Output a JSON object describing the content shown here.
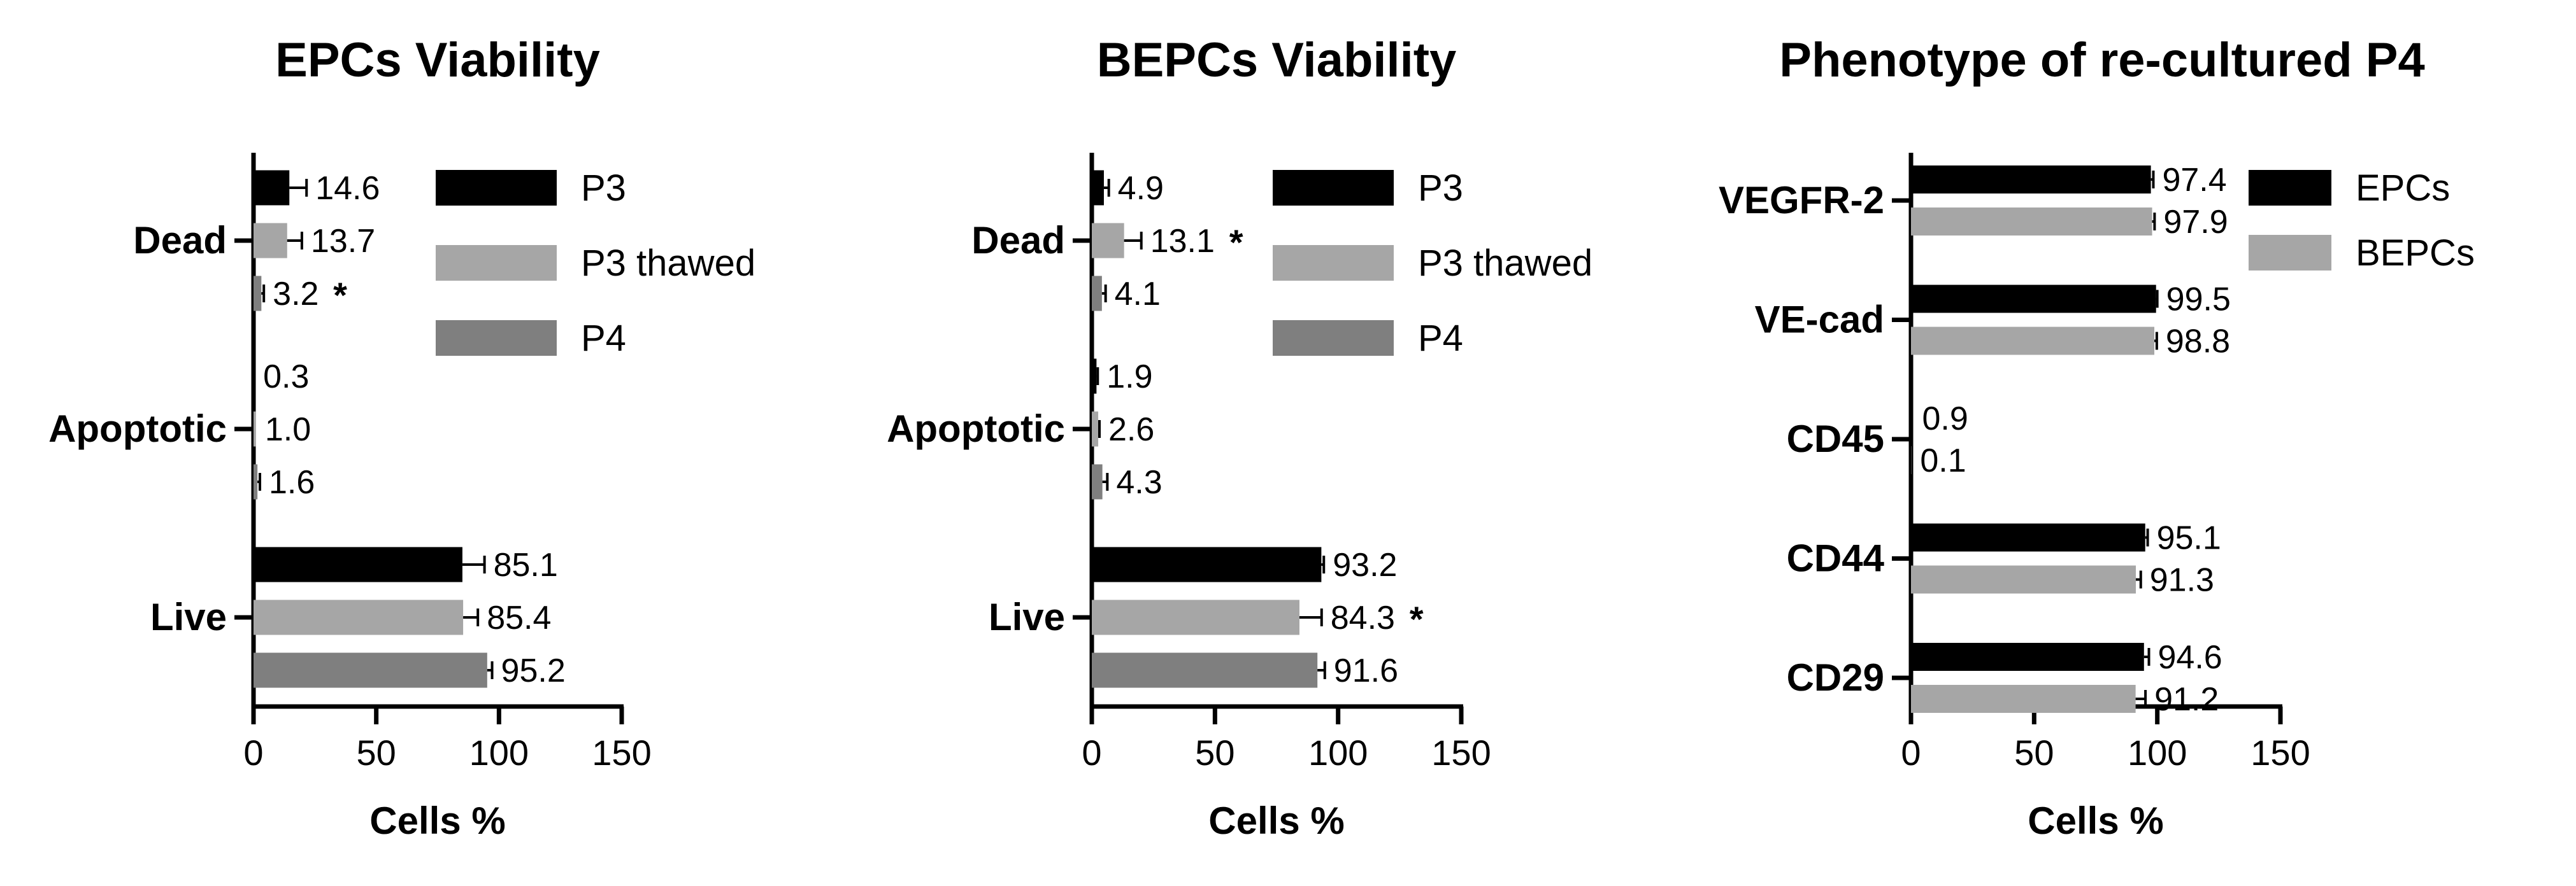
{
  "chart_data": [
    {
      "type": "bar",
      "orientation": "horizontal",
      "title": "EPCs Viability",
      "xlabel": "Cells %",
      "xlim": [
        0,
        150
      ],
      "xticks": [
        0,
        50,
        100,
        150
      ],
      "categories": [
        "Dead",
        "Apoptotic",
        "Live"
      ],
      "series": [
        {
          "name": "P3",
          "color": "#000000",
          "values": [
            14.6,
            0.3,
            85.1
          ],
          "errors": [
            7,
            0,
            9
          ],
          "labels": [
            "14.6",
            "0.3",
            "85.1"
          ],
          "sig": [
            "",
            "",
            ""
          ]
        },
        {
          "name": "P3 thawed",
          "color": "#a6a6a6",
          "values": [
            13.7,
            1.0,
            85.4
          ],
          "errors": [
            6,
            0,
            6
          ],
          "labels": [
            "13.7",
            "1.0",
            "85.4"
          ],
          "sig": [
            "",
            "",
            ""
          ]
        },
        {
          "name": "P4",
          "color": "#7f7f7f",
          "values": [
            3.2,
            1.6,
            95.2
          ],
          "errors": [
            1,
            1,
            2
          ],
          "labels": [
            "3.2",
            "1.6",
            "95.2"
          ],
          "sig": [
            "*",
            "",
            ""
          ]
        }
      ],
      "legend": [
        "P3",
        "P3 thawed",
        "P4"
      ]
    },
    {
      "type": "bar",
      "orientation": "horizontal",
      "title": "BEPCs Viability",
      "xlabel": "Cells %",
      "xlim": [
        0,
        150
      ],
      "xticks": [
        0,
        50,
        100,
        150
      ],
      "categories": [
        "Dead",
        "Apoptotic",
        "Live"
      ],
      "series": [
        {
          "name": "P3",
          "color": "#000000",
          "values": [
            4.9,
            1.9,
            93.2
          ],
          "errors": [
            2,
            0.5,
            1
          ],
          "labels": [
            "4.9",
            "1.9",
            "93.2"
          ],
          "sig": [
            "",
            "",
            ""
          ]
        },
        {
          "name": "P3 thawed",
          "color": "#a6a6a6",
          "values": [
            13.1,
            2.6,
            84.3
          ],
          "errors": [
            7,
            0.5,
            9
          ],
          "labels": [
            "13.1",
            "2.6",
            "84.3"
          ],
          "sig": [
            "*",
            "",
            "*"
          ]
        },
        {
          "name": "P4",
          "color": "#7f7f7f",
          "values": [
            4.1,
            4.3,
            91.6
          ],
          "errors": [
            1.5,
            2,
            3
          ],
          "labels": [
            "4.1",
            "4.3",
            "91.6"
          ],
          "sig": [
            "",
            "",
            ""
          ]
        }
      ],
      "legend": [
        "P3",
        "P3 thawed",
        "P4"
      ]
    },
    {
      "type": "bar",
      "orientation": "horizontal",
      "title": "Phenotype of re-cultured P4",
      "xlabel": "Cells %",
      "xlim": [
        0,
        150
      ],
      "xticks": [
        0,
        50,
        100,
        150
      ],
      "categories": [
        "VEGFR-2",
        "VE-cad",
        "CD45",
        "CD44",
        "CD29"
      ],
      "series": [
        {
          "name": "EPCs",
          "color": "#000000",
          "values": [
            97.4,
            99.5,
            0.9,
            95.1,
            94.6
          ],
          "errors": [
            1,
            0.5,
            0,
            1,
            2
          ],
          "labels": [
            "97.4",
            "99.5",
            "0.9",
            "95.1",
            "94.6"
          ],
          "sig": [
            "",
            "",
            "",
            "",
            ""
          ]
        },
        {
          "name": "BEPCs",
          "color": "#a6a6a6",
          "values": [
            97.9,
            98.8,
            0.1,
            91.3,
            91.2
          ],
          "errors": [
            1,
            1,
            0,
            2,
            4
          ],
          "labels": [
            "97.9",
            "98.8",
            "0.1",
            "91.3",
            "91.2"
          ],
          "sig": [
            "",
            "",
            "",
            "",
            ""
          ]
        }
      ],
      "legend": [
        "EPCs",
        "BEPCs"
      ]
    }
  ]
}
